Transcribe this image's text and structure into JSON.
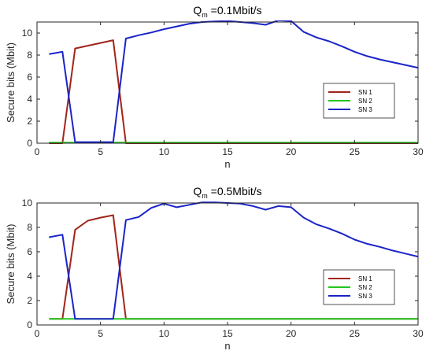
{
  "chart_data": [
    {
      "type": "line",
      "title": {
        "main": "Q",
        "sub": "m",
        "rest": " =0.1Mbit/s"
      },
      "xlabel": "n",
      "ylabel": "Secure bits (Mbit)",
      "xlim": [
        0,
        30
      ],
      "ylim": [
        0,
        11
      ],
      "xticks": [
        0,
        5,
        10,
        15,
        20,
        25,
        30
      ],
      "yticks": [
        0,
        2,
        4,
        6,
        8,
        10
      ],
      "grid": false,
      "legend_position": "right",
      "series": [
        {
          "name": "SN 1",
          "color": "#a0251a",
          "x": [
            1,
            2,
            3,
            4,
            5,
            6,
            7,
            8,
            9,
            10,
            11,
            12,
            13,
            14,
            15,
            16,
            17,
            18,
            19,
            20,
            21,
            22,
            23,
            24,
            25,
            26,
            27,
            28,
            29,
            30
          ],
          "y": [
            0,
            0,
            8.6,
            8.85,
            9.1,
            9.35,
            0,
            0,
            0,
            0,
            0,
            0,
            0,
            0,
            0,
            0,
            0,
            0,
            0,
            0,
            0,
            0,
            0,
            0,
            0,
            0,
            0,
            0,
            0,
            0
          ]
        },
        {
          "name": "SN 2",
          "color": "#22c81e",
          "x": [
            1,
            30
          ],
          "y": [
            0.05,
            0.05
          ]
        },
        {
          "name": "SN 3",
          "color": "#1a24c8",
          "x": [
            1,
            2,
            3,
            4,
            5,
            6,
            7,
            8,
            9,
            10,
            11,
            12,
            13,
            14,
            15,
            16,
            17,
            18,
            19,
            20,
            21,
            22,
            23,
            24,
            25,
            26,
            27,
            28,
            29,
            30
          ],
          "y": [
            8.1,
            8.3,
            0.1,
            0.1,
            0.1,
            0.1,
            9.5,
            9.8,
            10.05,
            10.35,
            10.6,
            10.85,
            11.0,
            11.05,
            11.1,
            11.0,
            10.9,
            10.75,
            11.15,
            11.1,
            10.1,
            9.6,
            9.25,
            8.8,
            8.3,
            7.9,
            7.6,
            7.35,
            7.1,
            6.85
          ]
        }
      ]
    },
    {
      "type": "line",
      "title": {
        "main": "Q",
        "sub": "m",
        "rest": " =0.5Mbit/s"
      },
      "xlabel": "n",
      "ylabel": "Secure bits (Mbit)",
      "xlim": [
        0,
        30
      ],
      "ylim": [
        0,
        10
      ],
      "xticks": [
        0,
        5,
        10,
        15,
        20,
        25,
        30
      ],
      "yticks": [
        0,
        2,
        4,
        6,
        8,
        10
      ],
      "grid": false,
      "legend_position": "right",
      "series": [
        {
          "name": "SN 1",
          "color": "#a0251a",
          "x": [
            1,
            2,
            3,
            4,
            5,
            6,
            7,
            8,
            9,
            10,
            11,
            12,
            13,
            14,
            15,
            16,
            17,
            18,
            19,
            20,
            21,
            22,
            23,
            24,
            25,
            26,
            27,
            28,
            29,
            30
          ],
          "y": [
            0.5,
            0.5,
            7.8,
            8.55,
            8.8,
            9.0,
            0.5,
            0.5,
            0.5,
            0.5,
            0.5,
            0.5,
            0.5,
            0.5,
            0.5,
            0.5,
            0.5,
            0.5,
            0.5,
            0.5,
            0.5,
            0.5,
            0.5,
            0.5,
            0.5,
            0.5,
            0.5,
            0.5,
            0.5,
            0.5
          ]
        },
        {
          "name": "SN 2",
          "color": "#22c81e",
          "x": [
            1,
            30
          ],
          "y": [
            0.5,
            0.5
          ]
        },
        {
          "name": "SN 3",
          "color": "#1a24c8",
          "x": [
            1,
            2,
            3,
            4,
            5,
            6,
            7,
            8,
            9,
            10,
            11,
            12,
            13,
            14,
            15,
            16,
            17,
            18,
            19,
            20,
            21,
            22,
            23,
            24,
            25,
            26,
            27,
            28,
            29,
            30
          ],
          "y": [
            7.2,
            7.4,
            0.5,
            0.5,
            0.5,
            0.5,
            8.6,
            8.85,
            9.6,
            9.95,
            9.65,
            9.85,
            10.05,
            10.05,
            10.0,
            9.95,
            9.75,
            9.45,
            9.75,
            9.65,
            8.8,
            8.25,
            7.9,
            7.5,
            7.0,
            6.65,
            6.4,
            6.1,
            5.85,
            5.6
          ]
        }
      ]
    }
  ]
}
